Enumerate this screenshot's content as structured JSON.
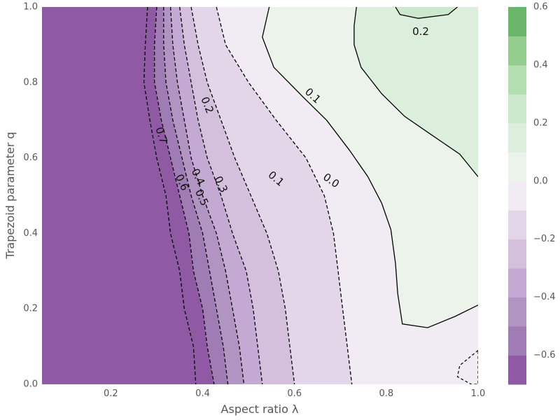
{
  "chart_data": {
    "type": "contour",
    "xlabel": "Aspect ratio λ",
    "ylabel": "Trapezoid parameter q",
    "xlim": [
      0.05,
      1.0
    ],
    "ylim": [
      0.0,
      1.0
    ],
    "x_ticks": [
      "0.2",
      "0.4",
      "0.6",
      "0.8",
      "1.0"
    ],
    "x_tick_values": [
      0.2,
      0.4,
      0.6,
      0.8,
      1.0
    ],
    "y_ticks": [
      "0.0",
      "0.2",
      "0.4",
      "0.6",
      "0.8",
      "1.0"
    ],
    "y_tick_values": [
      0.0,
      0.2,
      0.4,
      0.6,
      0.8,
      1.0
    ],
    "grid": true,
    "background_color": "#e5e5e5",
    "colorbar": {
      "ticks": [
        "0.6",
        "0.4",
        "0.2",
        "0.0",
        "−0.2",
        "−0.4",
        "−0.6"
      ],
      "tick_values": [
        0.6,
        0.4,
        0.2,
        0.0,
        -0.2,
        -0.4,
        -0.6
      ],
      "range": [
        -0.7,
        0.6
      ],
      "levels": [
        -0.7,
        -0.6,
        -0.5,
        -0.4,
        -0.3,
        -0.2,
        -0.1,
        0.0,
        0.1,
        0.2,
        0.3,
        0.4,
        0.5,
        0.6
      ],
      "colors": [
        "#8f5aa3",
        "#a07cb4",
        "#b294c2",
        "#c4aad2",
        "#d4c0dd",
        "#e4d6e9",
        "#f1ebf3",
        "#ebf3eb",
        "#dcefdc",
        "#cde9cd",
        "#b3dfb0",
        "#92cd8e",
        "#6ab76b"
      ]
    },
    "contour_lines": [
      {
        "level": -0.7,
        "label": "0.7",
        "points": [
          [
            0.28,
            1.0
          ],
          [
            0.275,
            0.9
          ],
          [
            0.272,
            0.8
          ],
          [
            0.285,
            0.7
          ],
          [
            0.3,
            0.6
          ],
          [
            0.32,
            0.5
          ],
          [
            0.33,
            0.4
          ],
          [
            0.35,
            0.3
          ],
          [
            0.36,
            0.2
          ],
          [
            0.38,
            0.1
          ],
          [
            0.385,
            0.0
          ]
        ]
      },
      {
        "level": -0.6,
        "label": "0.6",
        "points": [
          [
            0.3,
            1.0
          ],
          [
            0.295,
            0.9
          ],
          [
            0.295,
            0.8
          ],
          [
            0.31,
            0.7
          ],
          [
            0.33,
            0.6
          ],
          [
            0.35,
            0.5
          ],
          [
            0.37,
            0.4
          ],
          [
            0.38,
            0.3
          ],
          [
            0.4,
            0.2
          ],
          [
            0.41,
            0.1
          ],
          [
            0.425,
            0.0
          ]
        ]
      },
      {
        "level": -0.5,
        "label": "0.5",
        "points": [
          [
            0.315,
            1.0
          ],
          [
            0.315,
            0.9
          ],
          [
            0.32,
            0.8
          ],
          [
            0.335,
            0.7
          ],
          [
            0.355,
            0.6
          ],
          [
            0.375,
            0.5
          ],
          [
            0.4,
            0.4
          ],
          [
            0.415,
            0.3
          ],
          [
            0.43,
            0.2
          ],
          [
            0.445,
            0.1
          ],
          [
            0.455,
            0.0
          ]
        ]
      },
      {
        "level": -0.4,
        "label": "0.4",
        "points": [
          [
            0.33,
            1.0
          ],
          [
            0.335,
            0.9
          ],
          [
            0.345,
            0.8
          ],
          [
            0.36,
            0.7
          ],
          [
            0.375,
            0.6
          ],
          [
            0.4,
            0.5
          ],
          [
            0.43,
            0.4
          ],
          [
            0.45,
            0.3
          ],
          [
            0.465,
            0.2
          ],
          [
            0.48,
            0.1
          ],
          [
            0.49,
            0.0
          ]
        ]
      },
      {
        "level": -0.3,
        "label": "0.3",
        "points": [
          [
            0.35,
            1.0
          ],
          [
            0.36,
            0.9
          ],
          [
            0.375,
            0.8
          ],
          [
            0.39,
            0.7
          ],
          [
            0.41,
            0.6
          ],
          [
            0.44,
            0.5
          ],
          [
            0.465,
            0.4
          ],
          [
            0.495,
            0.3
          ],
          [
            0.51,
            0.2
          ],
          [
            0.52,
            0.1
          ],
          [
            0.53,
            0.0
          ]
        ]
      },
      {
        "level": -0.2,
        "label": "0.2",
        "points": [
          [
            0.375,
            1.0
          ],
          [
            0.39,
            0.9
          ],
          [
            0.41,
            0.8
          ],
          [
            0.44,
            0.7
          ],
          [
            0.47,
            0.6
          ],
          [
            0.505,
            0.5
          ],
          [
            0.54,
            0.4
          ],
          [
            0.565,
            0.3
          ],
          [
            0.58,
            0.2
          ],
          [
            0.59,
            0.1
          ],
          [
            0.6,
            0.0
          ]
        ]
      },
      {
        "level": -0.1,
        "label": "0.1",
        "points": [
          [
            0.43,
            1.0
          ],
          [
            0.45,
            0.9
          ],
          [
            0.5,
            0.8
          ],
          [
            0.56,
            0.7
          ],
          [
            0.625,
            0.6
          ],
          [
            0.665,
            0.5
          ],
          [
            0.685,
            0.4
          ],
          [
            0.695,
            0.3
          ],
          [
            0.705,
            0.2
          ],
          [
            0.715,
            0.1
          ],
          [
            0.725,
            0.0
          ]
        ]
      },
      {
        "level": 0.0,
        "label": "0.0",
        "points": [
          [
            0.545,
            1.0
          ],
          [
            0.53,
            0.92
          ],
          [
            0.555,
            0.84
          ],
          [
            0.62,
            0.76
          ],
          [
            0.67,
            0.7
          ],
          [
            0.72,
            0.62
          ],
          [
            0.76,
            0.55
          ],
          [
            0.79,
            0.48
          ],
          [
            0.81,
            0.41
          ],
          [
            0.82,
            0.32
          ],
          [
            0.825,
            0.24
          ],
          [
            0.835,
            0.16
          ],
          [
            0.89,
            0.15
          ],
          [
            0.95,
            0.18
          ],
          [
            1.0,
            0.21
          ]
        ]
      },
      {
        "level": 0.1,
        "label": "0.1",
        "points": [
          [
            0.735,
            1.0
          ],
          [
            0.73,
            0.95
          ],
          [
            0.73,
            0.9
          ],
          [
            0.745,
            0.84
          ],
          [
            0.79,
            0.77
          ],
          [
            0.84,
            0.71
          ],
          [
            0.9,
            0.66
          ],
          [
            0.96,
            0.61
          ],
          [
            1.0,
            0.55
          ]
        ]
      },
      {
        "level": 0.2,
        "label": "0.2",
        "points": [
          [
            0.82,
            1.0
          ],
          [
            0.83,
            0.98
          ],
          [
            0.87,
            0.97
          ],
          [
            0.935,
            0.98
          ],
          [
            0.955,
            1.0
          ]
        ]
      }
    ],
    "contour_labels": [
      {
        "text": "0.7",
        "x": 0.31,
        "y": 0.66,
        "angle": 72
      },
      {
        "text": "0.6",
        "x": 0.355,
        "y": 0.535,
        "angle": 65
      },
      {
        "text": "0.5",
        "x": 0.398,
        "y": 0.495,
        "angle": 65
      },
      {
        "text": "0.4",
        "x": 0.39,
        "y": 0.55,
        "angle": 65
      },
      {
        "text": "0.3",
        "x": 0.44,
        "y": 0.53,
        "angle": 65
      },
      {
        "text": "0.2",
        "x": 0.41,
        "y": 0.74,
        "angle": 68
      },
      {
        "text": "0.1",
        "x": 0.56,
        "y": 0.545,
        "angle": 40
      },
      {
        "text": "0.0",
        "x": 0.68,
        "y": 0.54,
        "angle": 35
      },
      {
        "text": "0.1",
        "x": 0.64,
        "y": 0.765,
        "angle": 42
      },
      {
        "text": "0.2",
        "x": 0.875,
        "y": 0.935,
        "angle": 0
      }
    ]
  }
}
